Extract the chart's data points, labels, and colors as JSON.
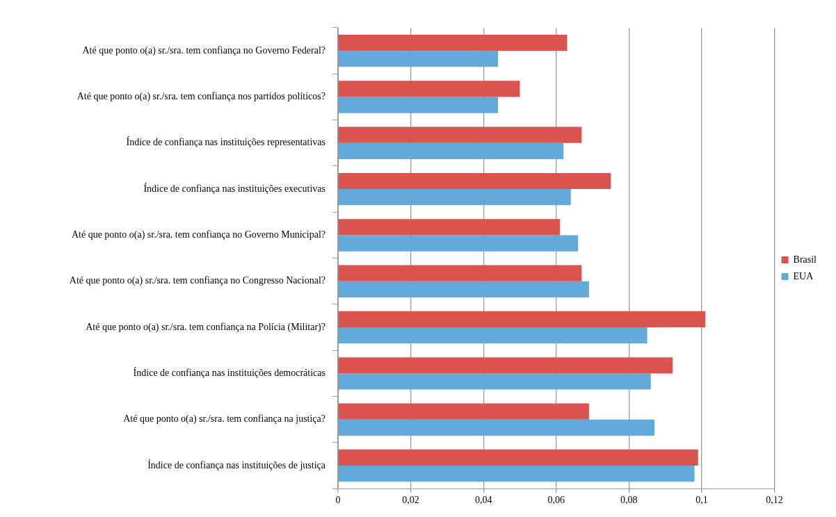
{
  "chart_data": {
    "type": "bar",
    "orientation": "horizontal",
    "categories": [
      "Até que ponto o(a) sr./sra. tem confiança no Governo Federal?",
      "Até que ponto o(a) sr./sra. tem confiança nos partidos políticos?",
      "Índice de confiança nas instituições representativas",
      "Índice de confiança nas instituições executivas",
      "Até que ponto o(a) sr./sra. tem confiança no Governo Municipal?",
      "Até que ponto o(a) sr./sra. tem confiança no Congresso Nacional?",
      "Até que ponto o(a) sr./sra. tem confiança na Polícia (Militar)?",
      "Índice de confiança nas instituições democráticas",
      "Até que ponto o(a) sr./sra. tem confiança na justiça?",
      "Índice de confiança nas instituições de justiça"
    ],
    "series": [
      {
        "name": "Brasil",
        "color": "#d9534f",
        "values": [
          0.063,
          0.05,
          0.067,
          0.075,
          0.061,
          0.067,
          0.101,
          0.092,
          0.069,
          0.099
        ]
      },
      {
        "name": "EUA",
        "color": "#61aad9",
        "values": [
          0.044,
          0.044,
          0.062,
          0.064,
          0.066,
          0.069,
          0.085,
          0.086,
          0.087,
          0.098
        ]
      }
    ],
    "xlim": [
      0,
      0.12
    ],
    "xticks": [
      0,
      {
        "value": 0.02,
        "label": "0,02"
      },
      {
        "value": 0.04,
        "label": "0,04"
      },
      {
        "value": 0.06,
        "label": "0,06"
      },
      {
        "value": 0.08,
        "label": "0,08"
      },
      {
        "value": 0.1,
        "label": "0,1"
      },
      {
        "value": 0.12,
        "label": "0,12"
      }
    ],
    "grid": "x",
    "legend": "right"
  }
}
